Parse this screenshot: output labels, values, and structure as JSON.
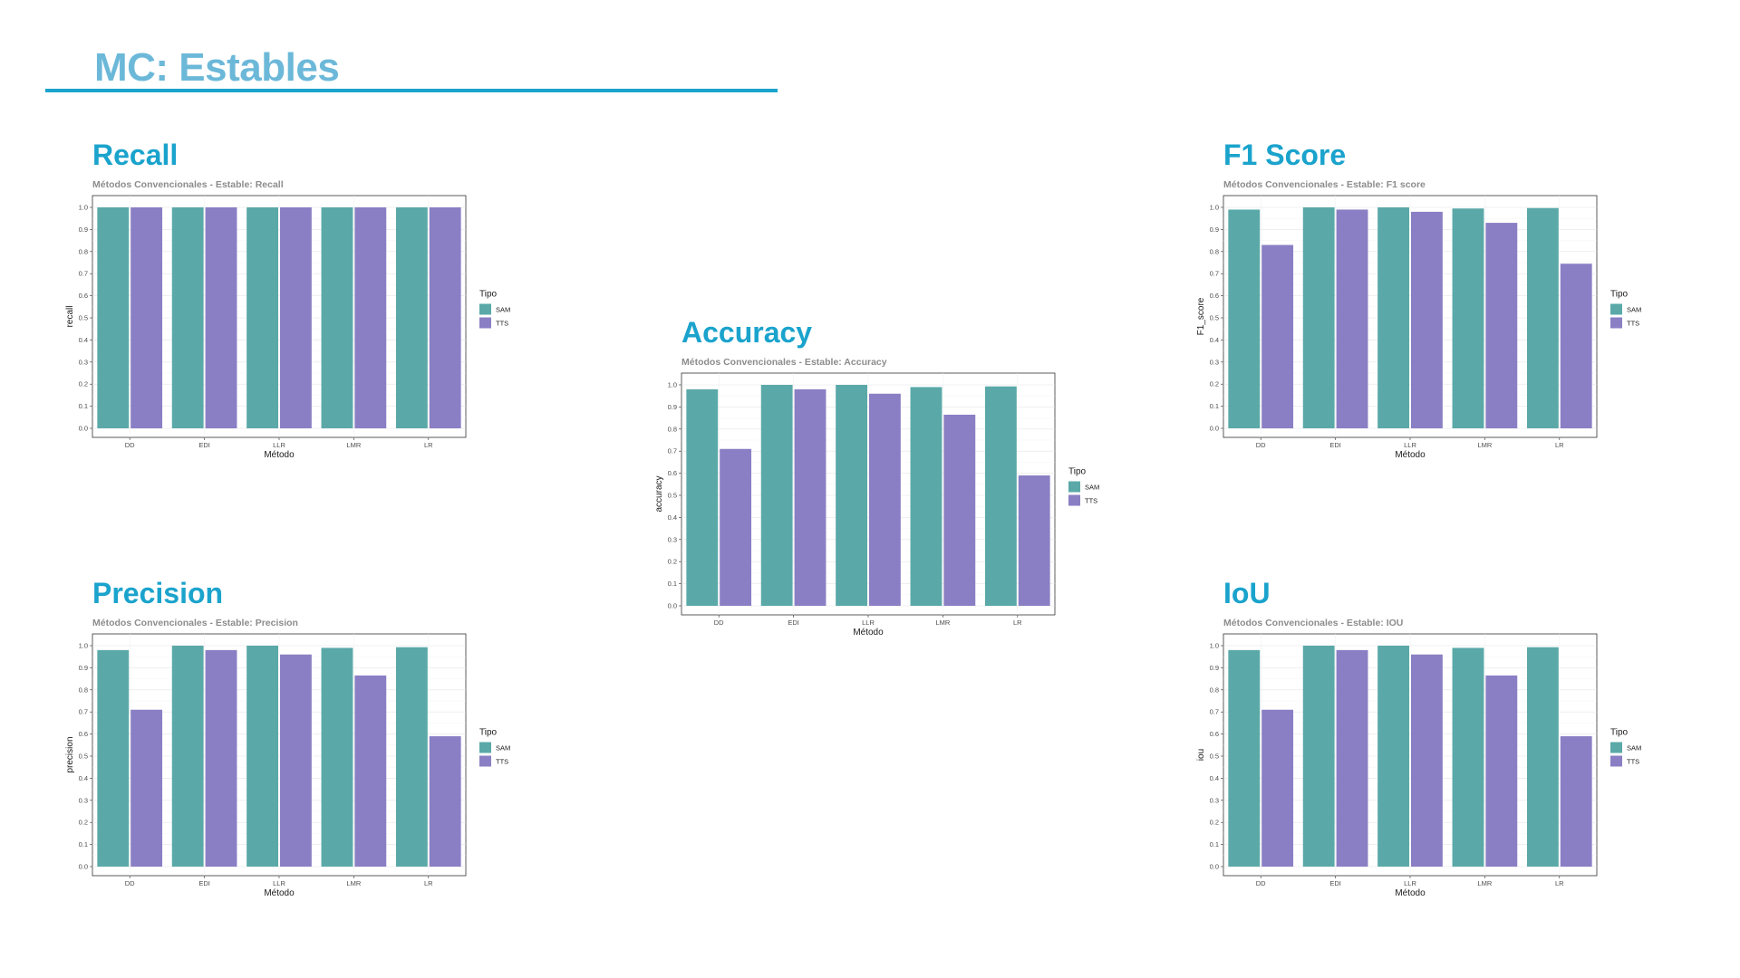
{
  "slide": {
    "title": "MC: Estables",
    "colors": {
      "title": "#6cb8d9",
      "heading": "#1aa3cc",
      "rule": "#1aa3cc"
    }
  },
  "panels": [
    {
      "heading": "Recall"
    },
    {
      "heading": "F1 Score"
    },
    {
      "heading": "Accuracy"
    },
    {
      "heading": "Precision"
    },
    {
      "heading": "IoU"
    }
  ],
  "chart_data": [
    {
      "type": "bar",
      "title": "Métodos Convencionales - Estable: Recall",
      "xlabel": "Método",
      "ylabel": "recall",
      "categories": [
        "DD",
        "EDI",
        "LLR",
        "LMR",
        "LR"
      ],
      "ylim": [
        0,
        1.0
      ],
      "yticks": [
        "0.0",
        "0.1",
        "0.2",
        "0.3",
        "0.4",
        "0.5",
        "0.6",
        "0.7",
        "0.8",
        "0.9",
        "1.0"
      ],
      "grid": true,
      "legend": {
        "title": "Tipo",
        "placement": "right"
      },
      "series": [
        {
          "name": "SAM",
          "color": "#5aa9a8",
          "values": [
            1.0,
            1.0,
            1.0,
            1.0,
            1.0
          ]
        },
        {
          "name": "TTS",
          "color": "#8a7fc4",
          "values": [
            1.0,
            1.0,
            1.0,
            1.0,
            1.0
          ]
        }
      ]
    },
    {
      "type": "bar",
      "title": "Métodos Convencionales - Estable: F1 score",
      "xlabel": "Método",
      "ylabel": "F1_score",
      "categories": [
        "DD",
        "EDI",
        "LLR",
        "LMR",
        "LR"
      ],
      "ylim": [
        0,
        1.0
      ],
      "yticks": [
        "0.0",
        "0.1",
        "0.2",
        "0.3",
        "0.4",
        "0.5",
        "0.6",
        "0.7",
        "0.8",
        "0.9",
        "1.0"
      ],
      "grid": true,
      "legend": {
        "title": "Tipo",
        "placement": "right"
      },
      "series": [
        {
          "name": "SAM",
          "color": "#5aa9a8",
          "values": [
            0.99,
            1.0,
            1.0,
            0.995,
            0.997
          ]
        },
        {
          "name": "TTS",
          "color": "#8a7fc4",
          "values": [
            0.83,
            0.99,
            0.98,
            0.93,
            0.745
          ]
        }
      ]
    },
    {
      "type": "bar",
      "title": "Métodos Convencionales - Estable: Accuracy",
      "xlabel": "Método",
      "ylabel": "accuracy",
      "categories": [
        "DD",
        "EDI",
        "LLR",
        "LMR",
        "LR"
      ],
      "ylim": [
        0,
        1.0
      ],
      "yticks": [
        "0.0",
        "0.1",
        "0.2",
        "0.3",
        "0.4",
        "0.5",
        "0.6",
        "0.7",
        "0.8",
        "0.9",
        "1.0"
      ],
      "grid": true,
      "legend": {
        "title": "Tipo",
        "placement": "right"
      },
      "series": [
        {
          "name": "SAM",
          "color": "#5aa9a8",
          "values": [
            0.98,
            1.0,
            1.0,
            0.99,
            0.993
          ]
        },
        {
          "name": "TTS",
          "color": "#8a7fc4",
          "values": [
            0.71,
            0.98,
            0.96,
            0.865,
            0.59
          ]
        }
      ]
    },
    {
      "type": "bar",
      "title": "Métodos Convencionales - Estable: Precision",
      "xlabel": "Método",
      "ylabel": "precision",
      "categories": [
        "DD",
        "EDI",
        "LLR",
        "LMR",
        "LR"
      ],
      "ylim": [
        0,
        1.0
      ],
      "yticks": [
        "0.0",
        "0.1",
        "0.2",
        "0.3",
        "0.4",
        "0.5",
        "0.6",
        "0.7",
        "0.8",
        "0.9",
        "1.0"
      ],
      "grid": true,
      "legend": {
        "title": "Tipo",
        "placement": "right"
      },
      "series": [
        {
          "name": "SAM",
          "color": "#5aa9a8",
          "values": [
            0.98,
            1.0,
            1.0,
            0.99,
            0.993
          ]
        },
        {
          "name": "TTS",
          "color": "#8a7fc4",
          "values": [
            0.71,
            0.98,
            0.96,
            0.865,
            0.59
          ]
        }
      ]
    },
    {
      "type": "bar",
      "title": "Métodos Convencionales - Estable: IOU",
      "xlabel": "Método",
      "ylabel": "iou",
      "categories": [
        "DD",
        "EDI",
        "LLR",
        "LMR",
        "LR"
      ],
      "ylim": [
        0,
        1.0
      ],
      "yticks": [
        "0.0",
        "0.1",
        "0.2",
        "0.3",
        "0.4",
        "0.5",
        "0.6",
        "0.7",
        "0.8",
        "0.9",
        "1.0"
      ],
      "grid": true,
      "legend": {
        "title": "Tipo",
        "placement": "right"
      },
      "series": [
        {
          "name": "SAM",
          "color": "#5aa9a8",
          "values": [
            0.98,
            1.0,
            1.0,
            0.99,
            0.993
          ]
        },
        {
          "name": "TTS",
          "color": "#8a7fc4",
          "values": [
            0.71,
            0.98,
            0.96,
            0.865,
            0.59
          ]
        }
      ]
    }
  ]
}
